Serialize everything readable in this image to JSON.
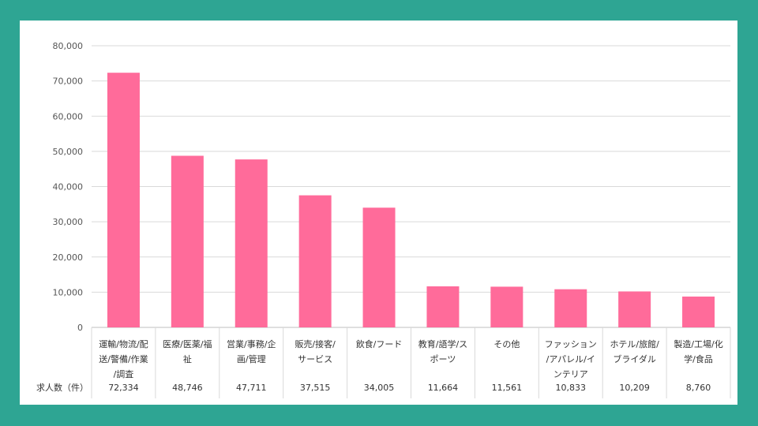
{
  "colors": {
    "background": "#2ea593",
    "panel": "#ffffff",
    "bar": "#ff6b9a",
    "grid": "#d9d9d9"
  },
  "chart_data": {
    "type": "bar",
    "categories": [
      [
        "運輸/物流/配",
        "送/警備/作業",
        "/調査"
      ],
      [
        "医療/医薬/福",
        "祉"
      ],
      [
        "営業/事務/企",
        "画/管理"
      ],
      [
        "販売/接客/",
        "サービス"
      ],
      [
        "飲食/フード"
      ],
      [
        "教育/語学/ス",
        "ポーツ"
      ],
      [
        "その他"
      ],
      [
        "ファッション",
        "/アパレル/イ",
        "ンテリア"
      ],
      [
        "ホテル/旅館/",
        "ブライダル"
      ],
      [
        "製造/工場/化",
        "学/食品"
      ]
    ],
    "values": [
      72334,
      48746,
      47711,
      37515,
      34005,
      11664,
      11561,
      10833,
      10209,
      8760
    ],
    "value_labels": [
      "72,334",
      "48,746",
      "47,711",
      "37,515",
      "34,005",
      "11,664",
      "11,561",
      "10,833",
      "10,209",
      "8,760"
    ],
    "row_label": "求人数（件）",
    "yticks": [
      "0",
      "10,000",
      "20,000",
      "30,000",
      "40,000",
      "50,000",
      "60,000",
      "70,000",
      "80,000"
    ],
    "ylim": [
      0,
      80000
    ],
    "grid": true,
    "legend": "none"
  }
}
